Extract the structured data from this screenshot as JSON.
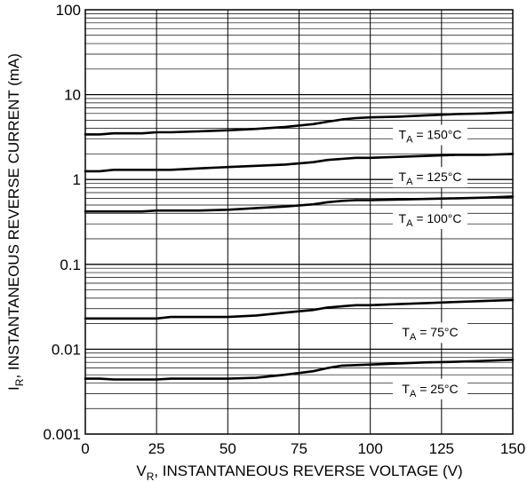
{
  "chart_data": {
    "type": "line",
    "xlabel": "V_R, INSTANTANEOUS REVERSE VOLTAGE (V)",
    "xlabel_main": "V",
    "xlabel_sub": "R",
    "xlabel_rest": ", INSTANTANEOUS REVERSE VOLTAGE (V)",
    "ylabel": "I_R, INSTANTANEOUS REVERSE CURRENT (mA)",
    "ylabel_main": "I",
    "ylabel_sub": "R",
    "ylabel_rest": ", INSTANTANEOUS REVERSE CURRENT (mA)",
    "xlim": [
      0,
      150
    ],
    "ylim": [
      0.001,
      100
    ],
    "yscale": "log",
    "grid": true,
    "x_ticks": [
      {
        "value": 0,
        "label": "0"
      },
      {
        "value": 25,
        "label": "25"
      },
      {
        "value": 50,
        "label": "50"
      },
      {
        "value": 75,
        "label": "75"
      },
      {
        "value": 100,
        "label": "100"
      },
      {
        "value": 125,
        "label": "125"
      },
      {
        "value": 150,
        "label": "150"
      }
    ],
    "y_ticks": [
      {
        "value": 0.001,
        "label": "0.001"
      },
      {
        "value": 0.01,
        "label": "0.01"
      },
      {
        "value": 0.1,
        "label": "0.1"
      },
      {
        "value": 1,
        "label": "1"
      },
      {
        "value": 10,
        "label": "10"
      },
      {
        "value": 100,
        "label": "100"
      }
    ],
    "series": [
      {
        "name": "T_A = 150°C",
        "label_main": "T",
        "label_sub": "A",
        "label_rest": " = 150°C",
        "label_at": [
          121,
          3.3
        ],
        "x": [
          0,
          5,
          10,
          20,
          25,
          30,
          40,
          50,
          60,
          70,
          80,
          85,
          90,
          95,
          100,
          110,
          120,
          130,
          140,
          150
        ],
        "y": [
          3.4,
          3.4,
          3.5,
          3.5,
          3.6,
          3.6,
          3.7,
          3.8,
          3.95,
          4.15,
          4.5,
          4.8,
          5.1,
          5.3,
          5.4,
          5.5,
          5.7,
          5.9,
          6.0,
          6.2
        ]
      },
      {
        "name": "T_A = 125°C",
        "label_main": "T",
        "label_sub": "A",
        "label_rest": " = 125°C",
        "label_at": [
          121,
          1.05
        ],
        "x": [
          0,
          5,
          10,
          20,
          25,
          30,
          40,
          50,
          60,
          70,
          80,
          85,
          90,
          95,
          100,
          110,
          120,
          130,
          140,
          150
        ],
        "y": [
          1.25,
          1.25,
          1.3,
          1.3,
          1.3,
          1.3,
          1.35,
          1.4,
          1.45,
          1.5,
          1.6,
          1.7,
          1.75,
          1.8,
          1.8,
          1.85,
          1.9,
          1.95,
          1.95,
          2.0
        ]
      },
      {
        "name": "T_A = 100°C",
        "label_main": "T",
        "label_sub": "A",
        "label_rest": " = 100°C",
        "label_at": [
          121,
          0.34
        ],
        "x": [
          0,
          5,
          10,
          20,
          25,
          30,
          40,
          50,
          60,
          70,
          80,
          85,
          90,
          95,
          100,
          110,
          120,
          130,
          140,
          150
        ],
        "y": [
          0.42,
          0.42,
          0.42,
          0.42,
          0.43,
          0.43,
          0.43,
          0.44,
          0.46,
          0.48,
          0.51,
          0.54,
          0.56,
          0.57,
          0.57,
          0.58,
          0.59,
          0.6,
          0.61,
          0.63
        ]
      },
      {
        "name": "T_A = 75°C",
        "label_main": "T",
        "label_sub": "A",
        "label_rest": " = 75°C",
        "label_at": [
          121,
          0.0155
        ],
        "x": [
          0,
          5,
          10,
          20,
          25,
          30,
          40,
          50,
          60,
          70,
          80,
          85,
          90,
          95,
          100,
          110,
          120,
          130,
          140,
          150
        ],
        "y": [
          0.023,
          0.023,
          0.023,
          0.023,
          0.023,
          0.024,
          0.024,
          0.024,
          0.025,
          0.027,
          0.029,
          0.031,
          0.032,
          0.033,
          0.033,
          0.034,
          0.035,
          0.036,
          0.037,
          0.038
        ]
      },
      {
        "name": "T_A = 25°C",
        "label_main": "T",
        "label_sub": "A",
        "label_rest": " = 25°C",
        "label_at": [
          121,
          0.00335
        ],
        "x": [
          0,
          5,
          10,
          20,
          25,
          30,
          40,
          50,
          60,
          70,
          80,
          85,
          90,
          95,
          100,
          110,
          120,
          130,
          140,
          150
        ],
        "y": [
          0.0045,
          0.0045,
          0.0044,
          0.0044,
          0.0044,
          0.0045,
          0.0045,
          0.0045,
          0.0046,
          0.005,
          0.0055,
          0.006,
          0.0064,
          0.0065,
          0.0066,
          0.0068,
          0.007,
          0.0071,
          0.0073,
          0.0075
        ]
      }
    ]
  }
}
